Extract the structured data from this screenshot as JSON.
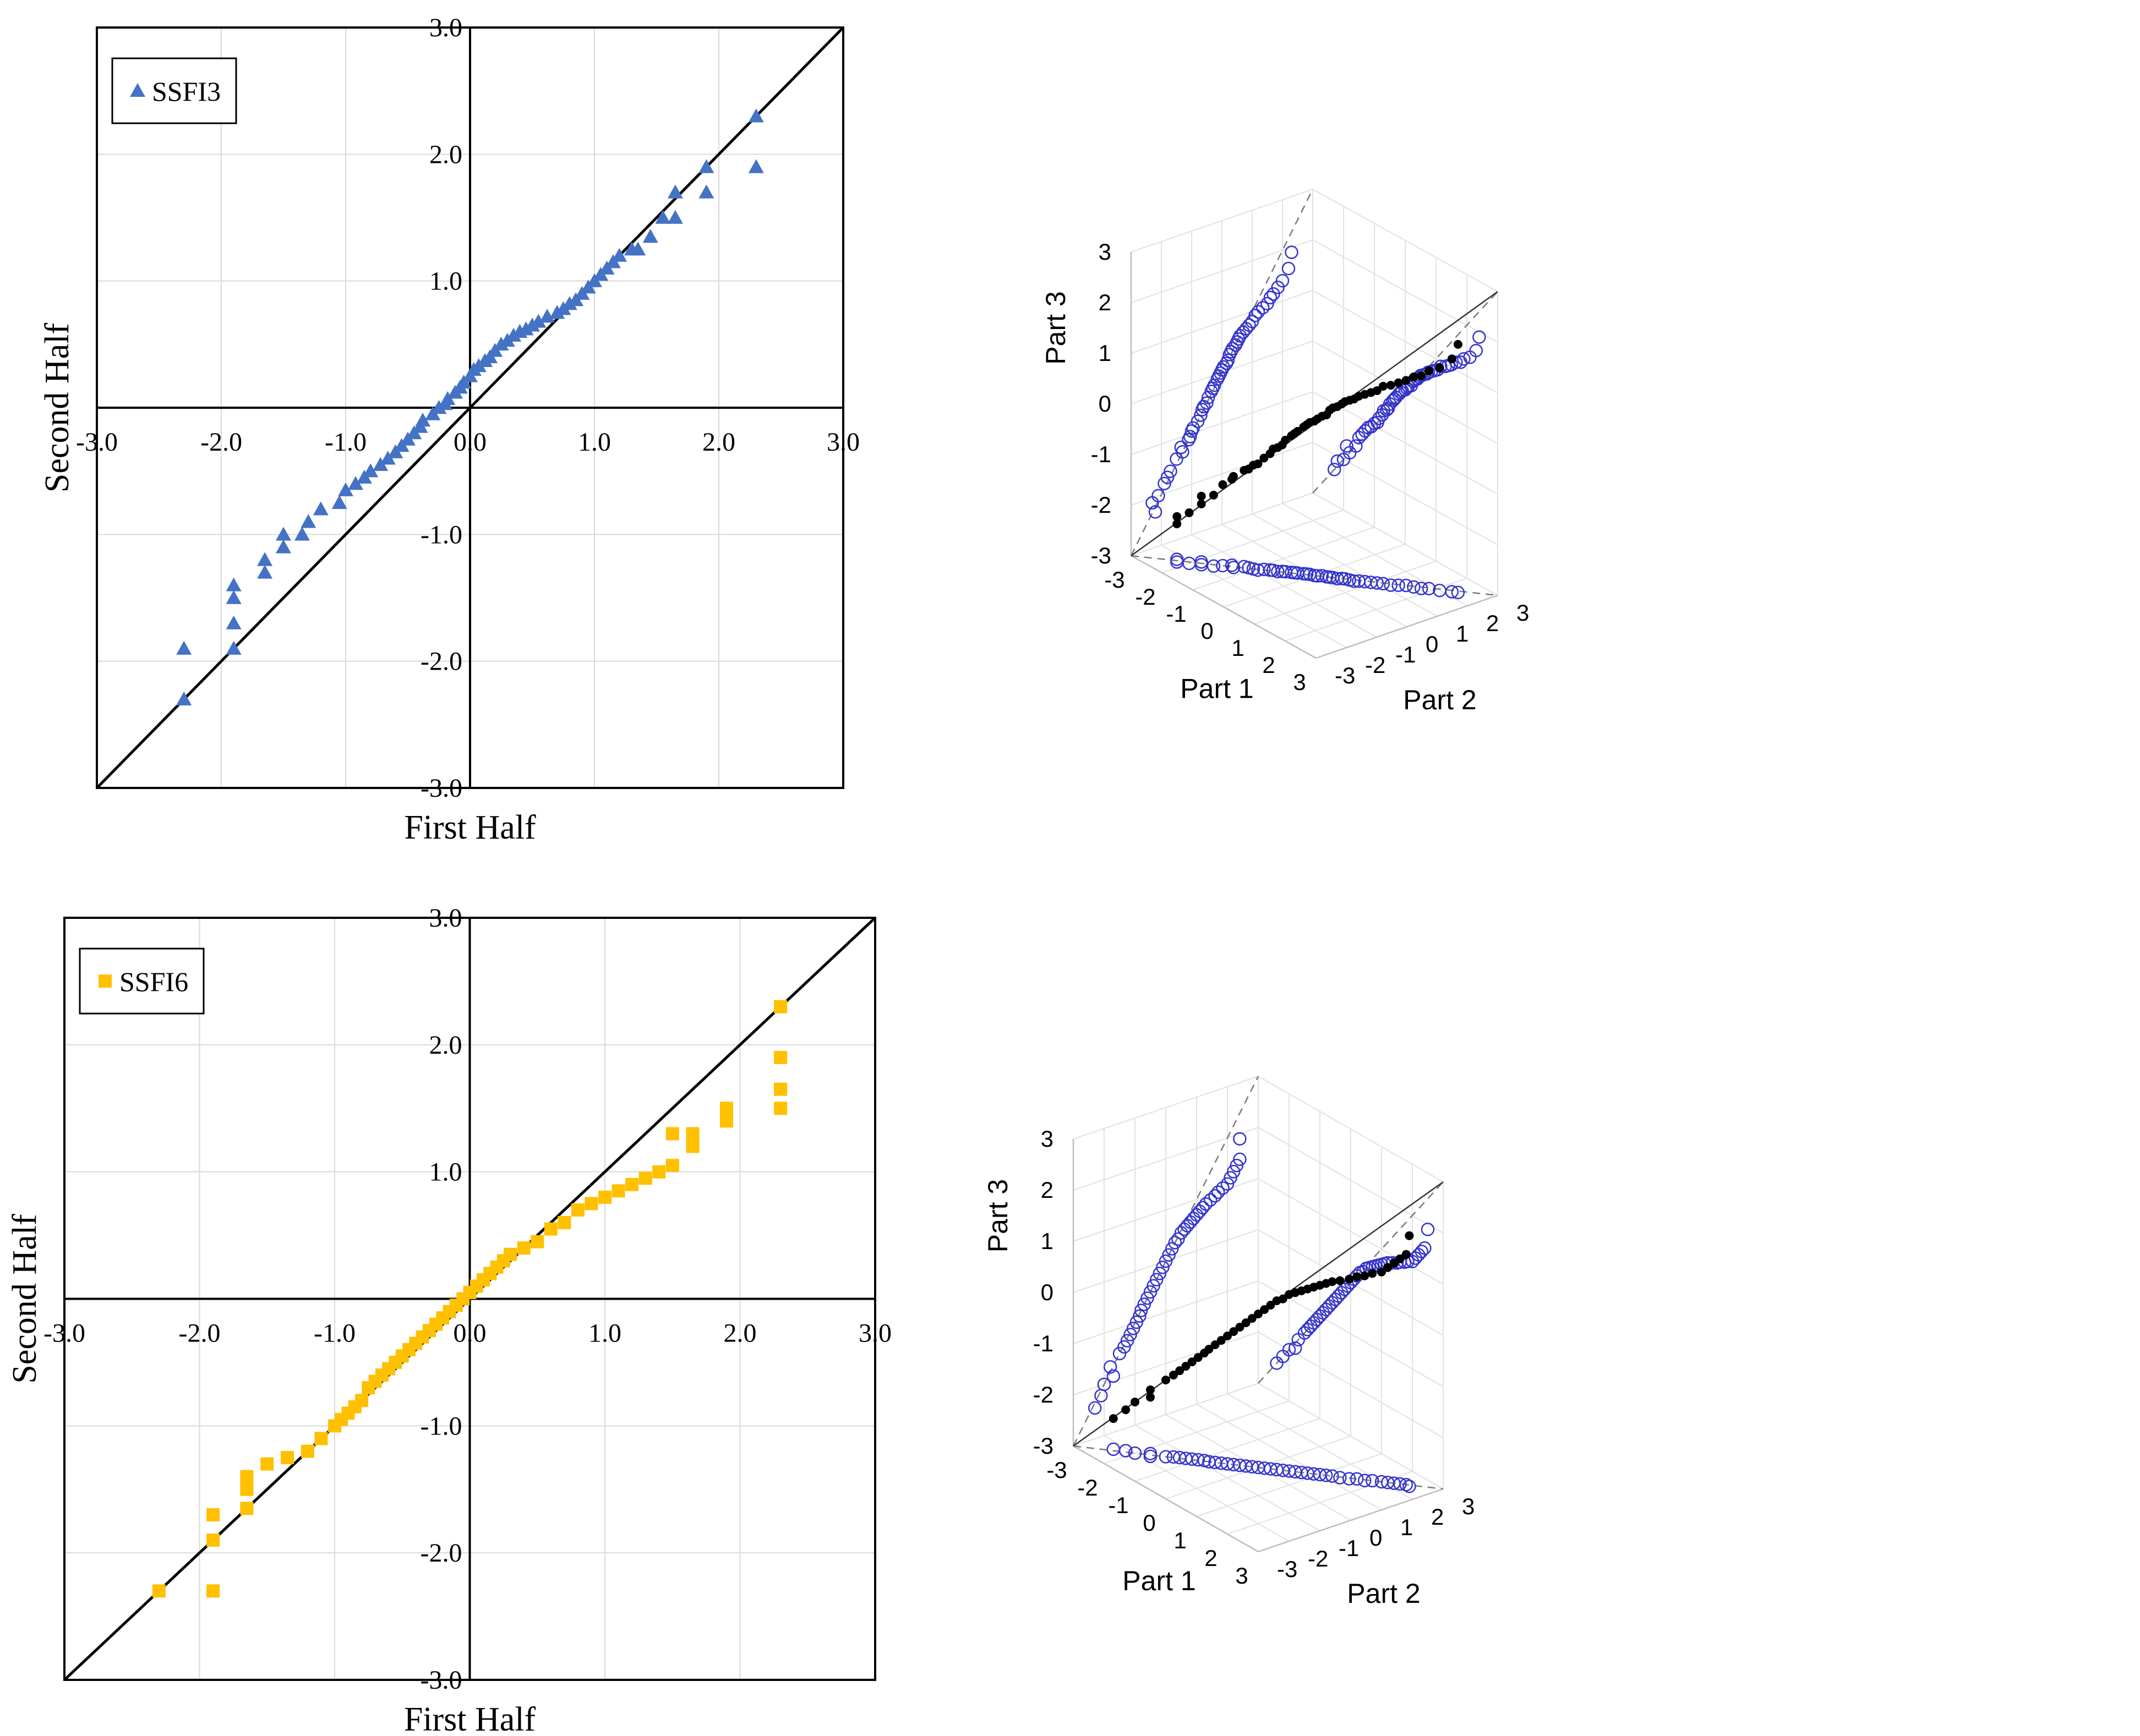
{
  "colors": {
    "triangle": "#4472C4",
    "square": "#FFC000",
    "open_circle": "#3333CC",
    "filled_dot": "#000000",
    "grid": "#d9d9d9",
    "axis": "#000000"
  },
  "chart_data": [
    {
      "id": "ssfi3-2d",
      "type": "scatter",
      "legend_label": "SSFI3",
      "legend_position": "top-left",
      "marker": "triangle",
      "xlabel": "First Half",
      "ylabel": "Second Half",
      "xlim": [
        -3,
        3
      ],
      "ylim": [
        -3,
        3
      ],
      "xticks": [
        "-3.0",
        "-2.0",
        "-1.0",
        "0.0",
        "1.0",
        "2.0",
        "3.0"
      ],
      "yticks": [
        "-3.0",
        "-2.0",
        "-1.0",
        "0.0",
        "1.0",
        "2.0",
        "3.0"
      ],
      "reference_line": "y = x",
      "grid": true,
      "x": [
        -2.3,
        -2.3,
        -1.9,
        -1.9,
        -1.9,
        -1.9,
        -1.65,
        -1.65,
        -1.5,
        -1.5,
        -1.35,
        -1.3,
        -1.2,
        -1.05,
        -1.0,
        -0.92,
        -0.85,
        -0.8,
        -0.72,
        -0.66,
        -0.6,
        -0.55,
        -0.5,
        -0.45,
        -0.4,
        -0.38,
        -0.3,
        -0.25,
        -0.2,
        -0.18,
        -0.12,
        -0.08,
        -0.05,
        0.0,
        0.03,
        0.07,
        0.12,
        0.16,
        0.2,
        0.25,
        0.3,
        0.35,
        0.4,
        0.45,
        0.5,
        0.55,
        0.62,
        0.7,
        0.75,
        0.8,
        0.85,
        0.9,
        0.95,
        1.0,
        1.05,
        1.1,
        1.15,
        1.2,
        1.3,
        1.35,
        1.45,
        1.55,
        1.65,
        1.65,
        1.9,
        1.9,
        2.3,
        2.3
      ],
      "y": [
        -2.3,
        -1.9,
        -1.9,
        -1.7,
        -1.5,
        -1.4,
        -1.3,
        -1.2,
        -1.1,
        -1.0,
        -1.0,
        -0.9,
        -0.8,
        -0.75,
        -0.65,
        -0.6,
        -0.55,
        -0.5,
        -0.45,
        -0.4,
        -0.35,
        -0.3,
        -0.25,
        -0.2,
        -0.15,
        -0.1,
        -0.05,
        0.0,
        0.03,
        0.07,
        0.12,
        0.16,
        0.2,
        0.25,
        0.3,
        0.33,
        0.37,
        0.4,
        0.45,
        0.5,
        0.53,
        0.57,
        0.6,
        0.62,
        0.65,
        0.68,
        0.72,
        0.75,
        0.78,
        0.82,
        0.85,
        0.9,
        0.95,
        1.0,
        1.05,
        1.1,
        1.15,
        1.2,
        1.25,
        1.25,
        1.35,
        1.5,
        1.5,
        1.7,
        1.7,
        1.9,
        1.9,
        2.3
      ]
    },
    {
      "id": "ssfi6-2d",
      "type": "scatter",
      "legend_label": "SSFI6",
      "legend_position": "top-left",
      "marker": "square",
      "xlabel": "First Half",
      "ylabel": "Second Half",
      "xlim": [
        -3,
        3
      ],
      "ylim": [
        -3,
        3
      ],
      "xticks": [
        "-3.0",
        "-2.0",
        "-1.0",
        "0.0",
        "1.0",
        "2.0",
        "3.0"
      ],
      "yticks": [
        "-3.0",
        "-2.0",
        "-1.0",
        "0.0",
        "1.0",
        "2.0",
        "3.0"
      ],
      "reference_line": "y = x",
      "grid": true,
      "x": [
        -2.3,
        -1.9,
        -1.9,
        -1.9,
        -1.65,
        -1.65,
        -1.65,
        -1.5,
        -1.35,
        -1.2,
        -1.1,
        -1.0,
        -0.95,
        -0.9,
        -0.85,
        -0.8,
        -0.75,
        -0.7,
        -0.65,
        -0.6,
        -0.55,
        -0.5,
        -0.45,
        -0.4,
        -0.35,
        -0.3,
        -0.25,
        -0.2,
        -0.15,
        -0.1,
        -0.05,
        0.0,
        0.05,
        0.1,
        0.15,
        0.2,
        0.25,
        0.3,
        0.4,
        0.5,
        0.6,
        0.7,
        0.8,
        0.9,
        1.0,
        1.1,
        1.2,
        1.3,
        1.4,
        1.5,
        1.5,
        1.65,
        1.65,
        1.9,
        1.9,
        2.3,
        2.3,
        2.3,
        2.3
      ],
      "y": [
        -2.3,
        -2.3,
        -1.9,
        -1.7,
        -1.65,
        -1.5,
        -1.4,
        -1.3,
        -1.25,
        -1.2,
        -1.1,
        -1.0,
        -0.95,
        -0.9,
        -0.85,
        -0.8,
        -0.7,
        -0.65,
        -0.6,
        -0.55,
        -0.5,
        -0.45,
        -0.4,
        -0.35,
        -0.3,
        -0.25,
        -0.2,
        -0.15,
        -0.1,
        -0.05,
        0.0,
        0.05,
        0.1,
        0.15,
        0.2,
        0.25,
        0.3,
        0.35,
        0.4,
        0.45,
        0.55,
        0.6,
        0.7,
        0.75,
        0.8,
        0.85,
        0.9,
        0.95,
        1.0,
        1.05,
        1.3,
        1.2,
        1.3,
        1.4,
        1.5,
        1.5,
        1.65,
        1.9,
        2.3
      ]
    },
    {
      "id": "ssfi3-3d",
      "type": "scatter",
      "subtype": "3d",
      "xlabel": "Part 1",
      "ylabel": "Part 2",
      "zlabel": "Part 3",
      "xlim": [
        -3,
        3
      ],
      "ylim": [
        -3,
        3
      ],
      "zlim": [
        -3,
        3
      ],
      "xticks": [
        "-3",
        "-2",
        "-1",
        "0",
        "1",
        "2",
        "3"
      ],
      "yticks": [
        "-3",
        "-2",
        "-1",
        "0",
        "1",
        "2",
        "3"
      ],
      "zticks": [
        "-3",
        "-2",
        "-1",
        "0",
        "1",
        "2",
        "3"
      ],
      "projections": "open circles on the three back walls, dashed reference lines",
      "points": [
        [
          -2.3,
          -2.2,
          -2.3
        ],
        [
          -2.2,
          -2.3,
          -2.1
        ],
        [
          -2.0,
          -2.1,
          -2.0
        ],
        [
          -1.9,
          -1.8,
          -1.7
        ],
        [
          -1.8,
          -1.9,
          -1.8
        ],
        [
          -1.6,
          -1.7,
          -1.6
        ],
        [
          -1.5,
          -1.5,
          -1.4
        ],
        [
          -1.4,
          -1.3,
          -1.3
        ],
        [
          -1.3,
          -1.35,
          -1.2
        ],
        [
          -1.2,
          -1.1,
          -1.1
        ],
        [
          -1.1,
          -1.05,
          -1.05
        ],
        [
          -1.0,
          -1.0,
          -0.95
        ],
        [
          -0.9,
          -0.95,
          -0.9
        ],
        [
          -0.85,
          -0.8,
          -0.8
        ],
        [
          -0.75,
          -0.7,
          -0.7
        ],
        [
          -0.7,
          -0.65,
          -0.6
        ],
        [
          -0.6,
          -0.6,
          -0.55
        ],
        [
          -0.55,
          -0.5,
          -0.5
        ],
        [
          -0.5,
          -0.45,
          -0.4
        ],
        [
          -0.4,
          -0.35,
          -0.3
        ],
        [
          -0.35,
          -0.3,
          -0.25
        ],
        [
          -0.3,
          -0.25,
          -0.2
        ],
        [
          -0.2,
          -0.15,
          -0.1
        ],
        [
          -0.15,
          -0.1,
          -0.05
        ],
        [
          -0.1,
          -0.05,
          0.0
        ],
        [
          0.0,
          0.0,
          0.05
        ],
        [
          0.05,
          0.05,
          0.1
        ],
        [
          0.1,
          0.15,
          0.15
        ],
        [
          0.2,
          0.2,
          0.2
        ],
        [
          0.25,
          0.25,
          0.3
        ],
        [
          0.3,
          0.3,
          0.35
        ],
        [
          0.4,
          0.35,
          0.4
        ],
        [
          0.45,
          0.45,
          0.45
        ],
        [
          0.5,
          0.5,
          0.5
        ],
        [
          0.6,
          0.55,
          0.55
        ],
        [
          0.7,
          0.6,
          0.6
        ],
        [
          0.75,
          0.7,
          0.65
        ],
        [
          0.85,
          0.8,
          0.7
        ],
        [
          0.95,
          0.9,
          0.75
        ],
        [
          1.05,
          1.0,
          0.8
        ],
        [
          1.15,
          1.1,
          0.9
        ],
        [
          1.3,
          1.2,
          0.95
        ],
        [
          1.4,
          1.35,
          1.0
        ],
        [
          1.5,
          1.5,
          1.05
        ],
        [
          1.65,
          1.6,
          1.15
        ],
        [
          1.8,
          1.7,
          1.2
        ],
        [
          1.9,
          1.85,
          1.3
        ],
        [
          2.1,
          2.0,
          1.4
        ],
        [
          2.3,
          2.2,
          1.6
        ],
        [
          2.4,
          2.3,
          1.9
        ]
      ]
    },
    {
      "id": "ssfi6-3d",
      "type": "scatter",
      "subtype": "3d",
      "xlabel": "Part 1",
      "ylabel": "Part 2",
      "zlabel": "Part 3",
      "xlim": [
        -3,
        3
      ],
      "ylim": [
        -3,
        3
      ],
      "zlim": [
        -3,
        3
      ],
      "xticks": [
        "-3",
        "-2",
        "-1",
        "0",
        "1",
        "2",
        "3"
      ],
      "yticks": [
        "-3",
        "-2",
        "-1",
        "0",
        "1",
        "2",
        "3"
      ],
      "zticks": [
        "-3",
        "-2",
        "-1",
        "0",
        "1",
        "2",
        "3"
      ],
      "projections": "open circles on the three back walls, dashed reference lines",
      "points": [
        [
          -2.4,
          -2.3,
          -2.4
        ],
        [
          -2.2,
          -2.1,
          -2.2
        ],
        [
          -2.0,
          -2.0,
          -2.0
        ],
        [
          -1.8,
          -1.7,
          -1.9
        ],
        [
          -1.7,
          -1.8,
          -1.7
        ],
        [
          -1.5,
          -1.5,
          -1.5
        ],
        [
          -1.4,
          -1.35,
          -1.4
        ],
        [
          -1.3,
          -1.25,
          -1.3
        ],
        [
          -1.2,
          -1.15,
          -1.2
        ],
        [
          -1.1,
          -1.05,
          -1.1
        ],
        [
          -1.0,
          -0.95,
          -1.0
        ],
        [
          -0.9,
          -0.85,
          -0.9
        ],
        [
          -0.8,
          -0.8,
          -0.8
        ],
        [
          -0.7,
          -0.7,
          -0.7
        ],
        [
          -0.6,
          -0.6,
          -0.6
        ],
        [
          -0.5,
          -0.5,
          -0.5
        ],
        [
          -0.4,
          -0.4,
          -0.4
        ],
        [
          -0.3,
          -0.3,
          -0.3
        ],
        [
          -0.2,
          -0.2,
          -0.2
        ],
        [
          -0.1,
          -0.1,
          -0.1
        ],
        [
          0.0,
          0.0,
          0.0
        ],
        [
          0.1,
          0.1,
          0.1
        ],
        [
          0.2,
          0.2,
          0.2
        ],
        [
          0.3,
          0.3,
          0.3
        ],
        [
          0.4,
          0.4,
          0.35
        ],
        [
          0.5,
          0.5,
          0.45
        ],
        [
          0.6,
          0.6,
          0.5
        ],
        [
          0.7,
          0.7,
          0.55
        ],
        [
          0.8,
          0.8,
          0.6
        ],
        [
          0.9,
          0.9,
          0.65
        ],
        [
          1.0,
          1.0,
          0.7
        ],
        [
          1.1,
          1.1,
          0.75
        ],
        [
          1.2,
          1.2,
          0.8
        ],
        [
          1.35,
          1.3,
          0.85
        ],
        [
          1.5,
          1.45,
          0.9
        ],
        [
          1.6,
          1.6,
          0.95
        ],
        [
          1.75,
          1.7,
          1.0
        ],
        [
          1.85,
          1.85,
          1.05
        ],
        [
          2.0,
          2.0,
          1.1
        ],
        [
          2.1,
          2.1,
          1.2
        ],
        [
          2.2,
          2.2,
          1.3
        ],
        [
          2.3,
          2.3,
          1.4
        ],
        [
          2.4,
          2.4,
          1.5
        ],
        [
          2.5,
          2.4,
          1.9
        ]
      ]
    }
  ]
}
